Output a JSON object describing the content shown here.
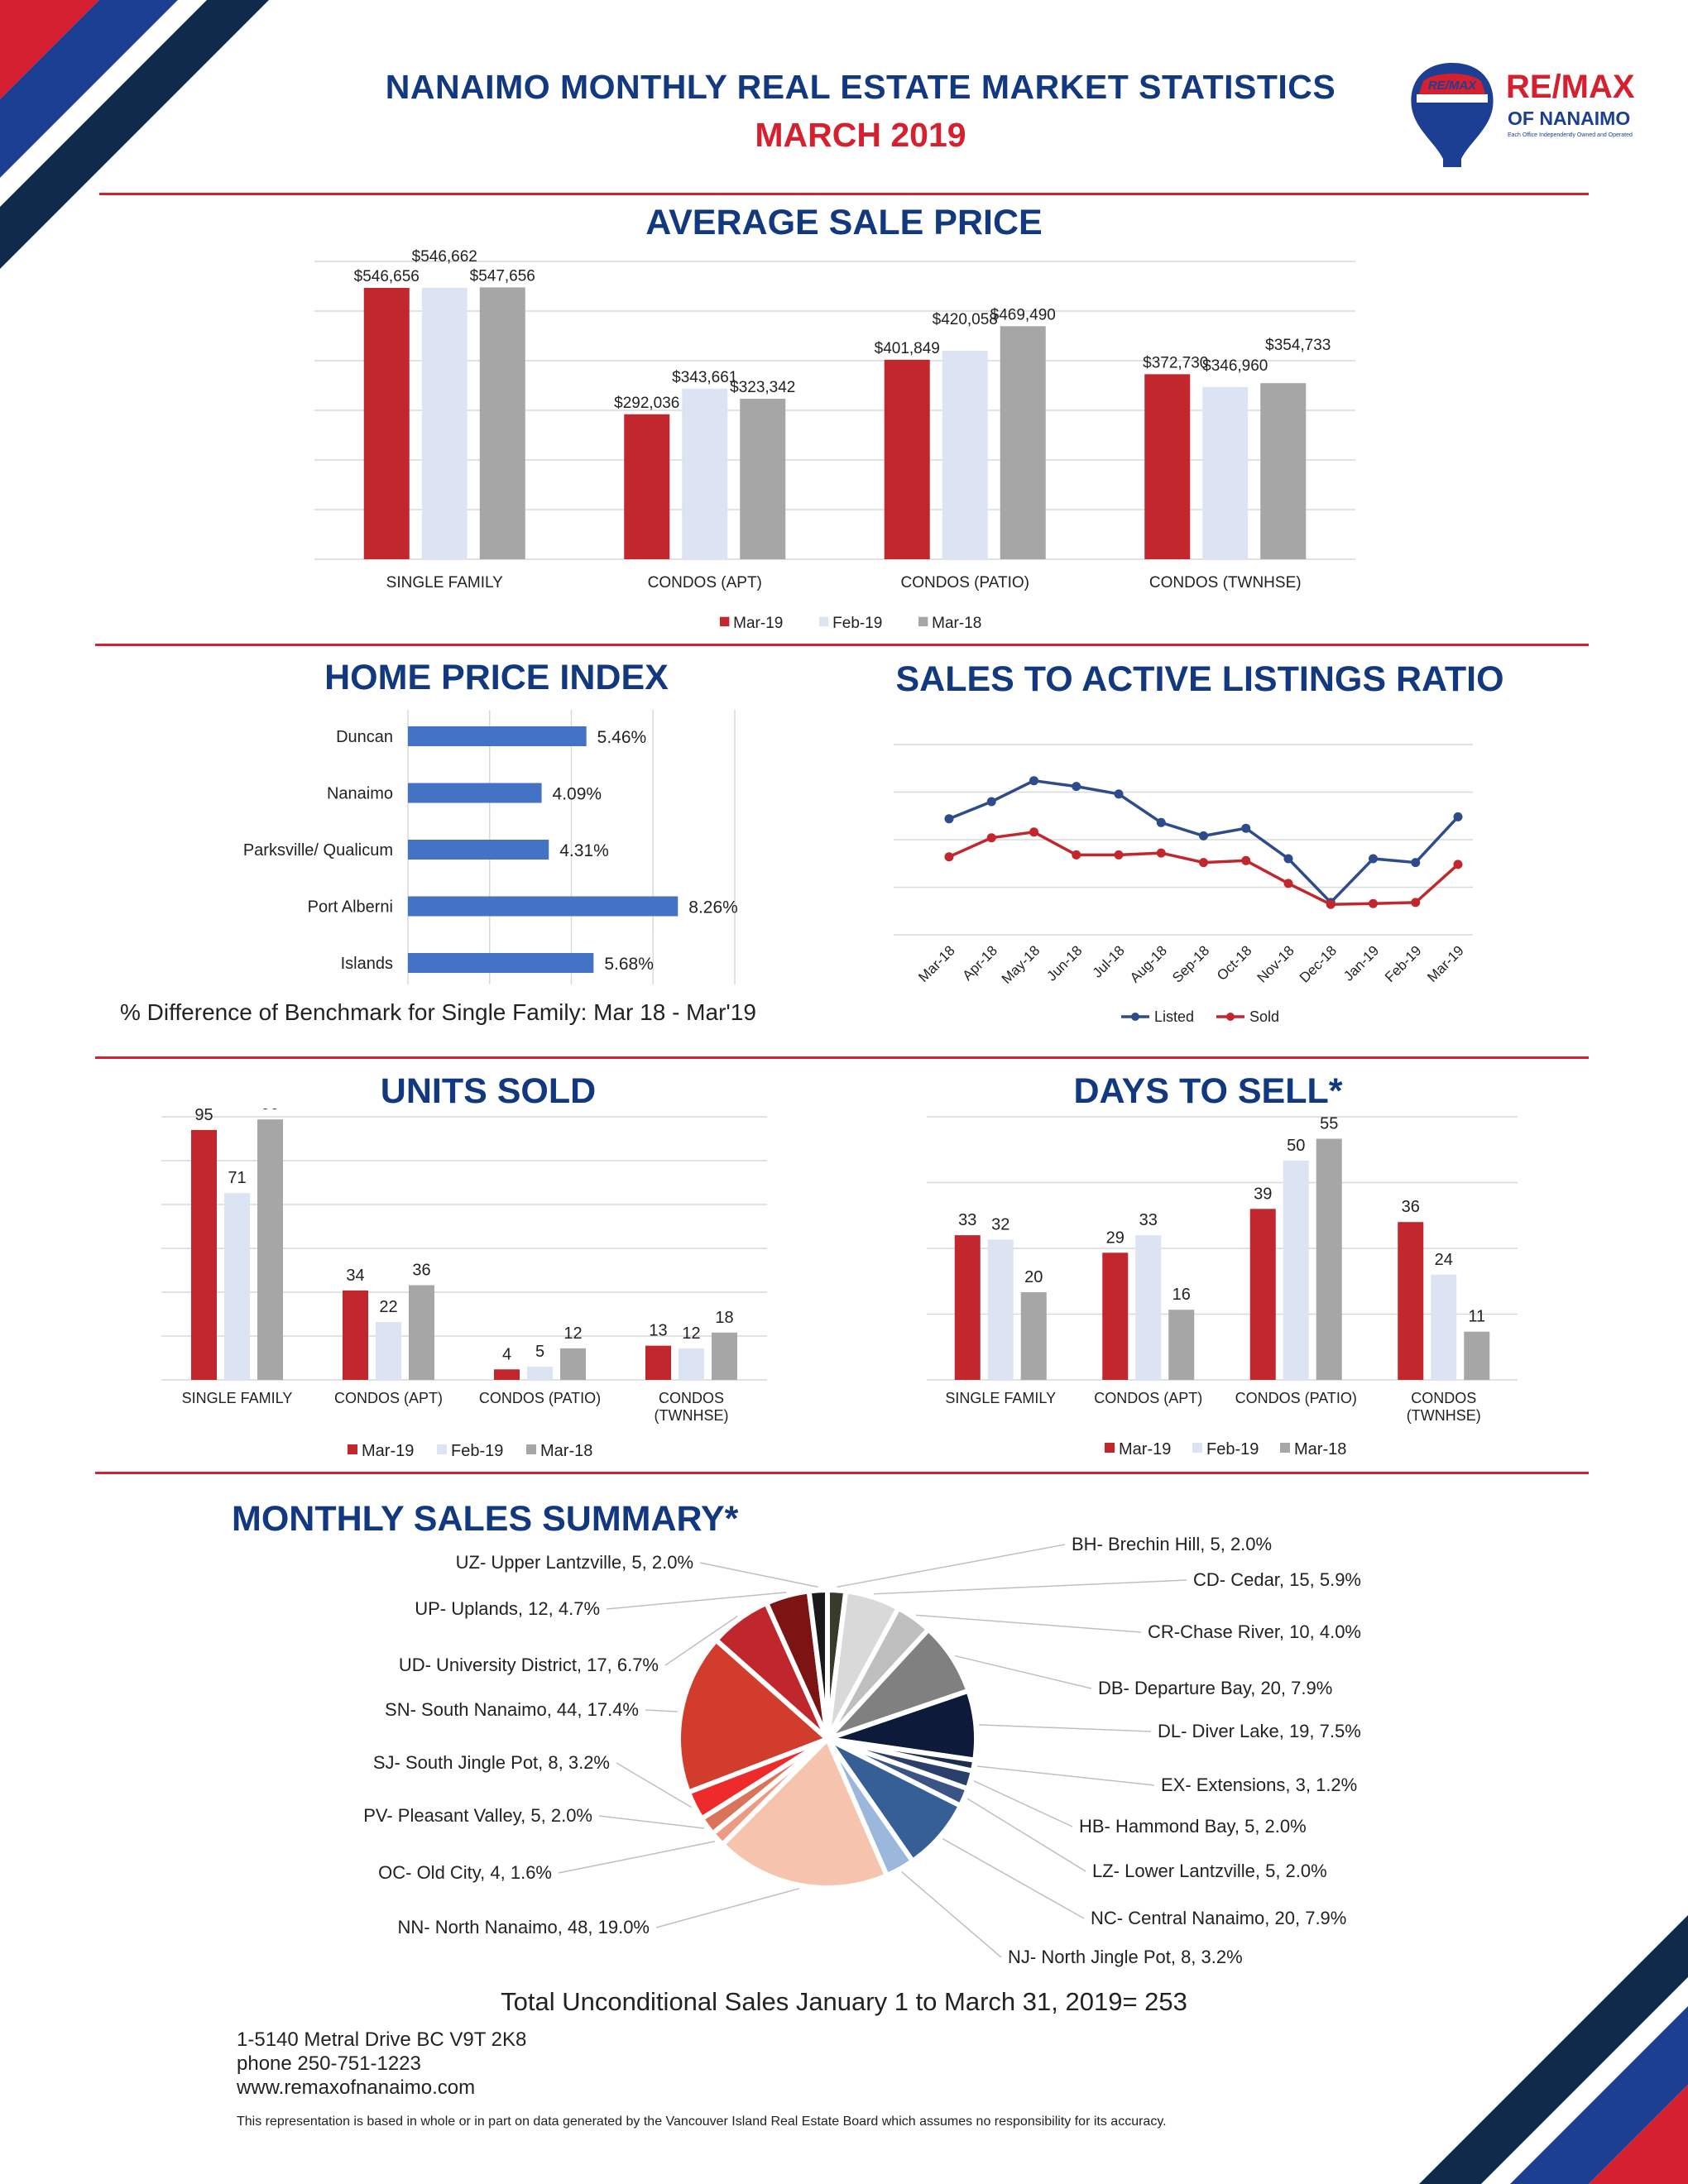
{
  "header": {
    "title": "NANAIMO MONTHLY REAL ESTATE MARKET STATISTICS",
    "subtitle": "MARCH 2019",
    "logo": {
      "brand": "RE/MAX",
      "balloon_text": "RE/MAX",
      "office": "OF NANAIMO",
      "tagline": "Each Office Independently Owned and Operated"
    }
  },
  "colors": {
    "red": "#c1272d",
    "lightblue": "#dce3f3",
    "gray": "#a6a6a6",
    "navy": "#2e4b8b",
    "blue": "#4472c4",
    "title": "#12387f",
    "accent_red": "#d5202f"
  },
  "sections": {
    "avg_price": "AVERAGE SALE PRICE",
    "hpi": "HOME PRICE INDEX",
    "ratio": "SALES TO ACTIVE LISTINGS RATIO",
    "units": "UNITS SOLD",
    "days": "DAYS TO SELL*",
    "summary": "MONTHLY SALES SUMMARY*"
  },
  "chart_data": [
    {
      "id": "avg_price",
      "type": "bar",
      "title": "AVERAGE SALE PRICE",
      "categories": [
        "SINGLE FAMILY",
        "CONDOS (APT)",
        "CONDOS (PATIO)",
        "CONDOS (TWNHSE)"
      ],
      "series": [
        {
          "name": "Mar-19",
          "values": [
            546656,
            292036,
            401849,
            372730
          ],
          "labels": [
            "$546,656",
            "$292,036",
            "$401,849",
            "$372,730"
          ]
        },
        {
          "name": "Feb-19",
          "values": [
            546662,
            343661,
            420058,
            346960
          ],
          "labels": [
            "$546,662",
            "$343,661",
            "$420,058",
            "$346,960"
          ]
        },
        {
          "name": "Mar-18",
          "values": [
            547656,
            323342,
            469490,
            354733
          ],
          "labels": [
            "$547,656",
            "$323,342",
            "$469,490",
            "$354,733"
          ]
        }
      ],
      "ylim": [
        0,
        600000
      ]
    },
    {
      "id": "hpi",
      "type": "bar",
      "orientation": "horizontal",
      "title": "HOME PRICE INDEX",
      "categories": [
        "Duncan",
        "Nanaimo",
        "Parksville/ Qualicum",
        "Port Alberni",
        "Islands"
      ],
      "values": [
        5.46,
        4.09,
        4.31,
        8.26,
        5.68
      ],
      "labels": [
        "5.46%",
        "4.09%",
        "4.31%",
        "8.26%",
        "5.68%"
      ],
      "xlim": [
        0,
        10
      ],
      "caption": "% Difference of Benchmark for Single Family: Mar 18 - Mar'19"
    },
    {
      "id": "ratio",
      "type": "line",
      "title": "SALES TO ACTIVE LISTINGS RATIO",
      "x": [
        "Mar-18",
        "Apr-18",
        "May-18",
        "Jun-18",
        "Jul-18",
        "Aug-18",
        "Sep-18",
        "Oct-18",
        "Nov-18",
        "Dec-18",
        "Jan-19",
        "Feb-19",
        "Mar-19"
      ],
      "series": [
        {
          "name": "Listed",
          "values": [
            3.05,
            3.5,
            4.05,
            3.9,
            3.7,
            2.95,
            2.6,
            2.8,
            2.0,
            0.85,
            2.0,
            1.9,
            3.1
          ]
        },
        {
          "name": "Sold",
          "values": [
            2.05,
            2.55,
            2.7,
            2.1,
            2.1,
            2.15,
            1.9,
            1.95,
            1.35,
            0.8,
            0.82,
            0.85,
            1.85
          ]
        }
      ],
      "ylim": [
        0,
        5
      ]
    },
    {
      "id": "units",
      "type": "bar",
      "title": "UNITS SOLD",
      "categories": [
        "SINGLE FAMILY",
        "CONDOS (APT)",
        "CONDOS (PATIO)",
        "CONDOS (TWNHSE)"
      ],
      "category_lines": [
        [
          "SINGLE FAMILY"
        ],
        [
          "CONDOS (APT)"
        ],
        [
          "CONDOS (PATIO)"
        ],
        [
          "CONDOS",
          "(TWNHSE)"
        ]
      ],
      "series": [
        {
          "name": "Mar-19",
          "values": [
            95,
            34,
            4,
            13
          ]
        },
        {
          "name": "Feb-19",
          "values": [
            71,
            22,
            5,
            12
          ]
        },
        {
          "name": "Mar-18",
          "values": [
            99,
            36,
            12,
            18
          ]
        }
      ],
      "ylim": [
        0,
        100
      ]
    },
    {
      "id": "days",
      "type": "bar",
      "title": "DAYS TO SELL*",
      "categories": [
        "SINGLE FAMILY",
        "CONDOS (APT)",
        "CONDOS (PATIO)",
        "CONDOS (TWNHSE)"
      ],
      "category_lines": [
        [
          "SINGLE FAMILY"
        ],
        [
          "CONDOS (APT)"
        ],
        [
          "CONDOS (PATIO)"
        ],
        [
          "CONDOS",
          "(TWNHSE)"
        ]
      ],
      "series": [
        {
          "name": "Mar-19",
          "values": [
            33,
            29,
            39,
            36
          ]
        },
        {
          "name": "Feb-19",
          "values": [
            32,
            33,
            50,
            24
          ]
        },
        {
          "name": "Mar-18",
          "values": [
            20,
            16,
            55,
            11
          ]
        }
      ],
      "ylim": [
        0,
        60
      ]
    },
    {
      "id": "summary",
      "type": "pie",
      "title": "MONTHLY SALES SUMMARY*",
      "slices": [
        {
          "label": "BH- Brechin Hill, 5, 2.0%",
          "value": 5,
          "color": "#3a3a2a"
        },
        {
          "label": "CD- Cedar, 15, 5.9%",
          "value": 15,
          "color": "#d9d9d9"
        },
        {
          "label": "CR-Chase River, 10, 4.0%",
          "value": 10,
          "color": "#bfbfbf"
        },
        {
          "label": "DB- Departure Bay, 20, 7.9%",
          "value": 20,
          "color": "#808080"
        },
        {
          "label": "DL- Diver Lake, 19, 7.5%",
          "value": 19,
          "color": "#0d1a3a"
        },
        {
          "label": "EX- Extensions, 3, 1.2%",
          "value": 3,
          "color": "#1f2d4f"
        },
        {
          "label": "HB- Hammond Bay, 5, 2.0%",
          "value": 5,
          "color": "#2b3f6b"
        },
        {
          "label": "LZ- Lower Lantzville, 5, 2.0%",
          "value": 5,
          "color": "#3a5485"
        },
        {
          "label": "NC- Central Nanaimo, 20, 7.9%",
          "value": 20,
          "color": "#355f95"
        },
        {
          "label": "NJ- North Jingle Pot, 8, 3.2%",
          "value": 8,
          "color": "#9bb7dc"
        },
        {
          "label": "NN- North Nanaimo, 48, 19.0%",
          "value": 48,
          "color": "#f6c3ad"
        },
        {
          "label": "OC- Old City, 4, 1.6%",
          "value": 4,
          "color": "#ee9a82"
        },
        {
          "label": "PV- Pleasant Valley, 5, 2.0%",
          "value": 5,
          "color": "#d9745a"
        },
        {
          "label": "SJ- South Jingle Pot, 8, 3.2%",
          "value": 8,
          "color": "#ef2a2a"
        },
        {
          "label": "SN- South Nanaimo, 44, 17.4%",
          "value": 44,
          "color": "#d23c2c"
        },
        {
          "label": "UD- University District, 17, 6.7%",
          "value": 17,
          "color": "#c0272d"
        },
        {
          "label": "UP- Uplands, 12, 4.7%",
          "value": 12,
          "color": "#7d1414"
        },
        {
          "label": "UZ- Upper Lantzville, 5, 2.0%",
          "value": 5,
          "color": "#1a1a1a"
        }
      ]
    }
  ],
  "legend": {
    "mar19": "Mar-19",
    "feb19": "Feb-19",
    "mar18": "Mar-18",
    "listed": "Listed",
    "sold": "Sold"
  },
  "footer": {
    "total": "Total Unconditional Sales January 1 to March 31, 2019= 253",
    "address": "1-5140 Metral Drive BC V9T 2K8",
    "phone": "phone 250-751-1223",
    "website": "www.remaxofnanaimo.com",
    "disclaimer": "This representation is based in whole or in part on data generated by the Vancouver Island Real Estate Board which assumes no responsibility for its accuracy."
  }
}
